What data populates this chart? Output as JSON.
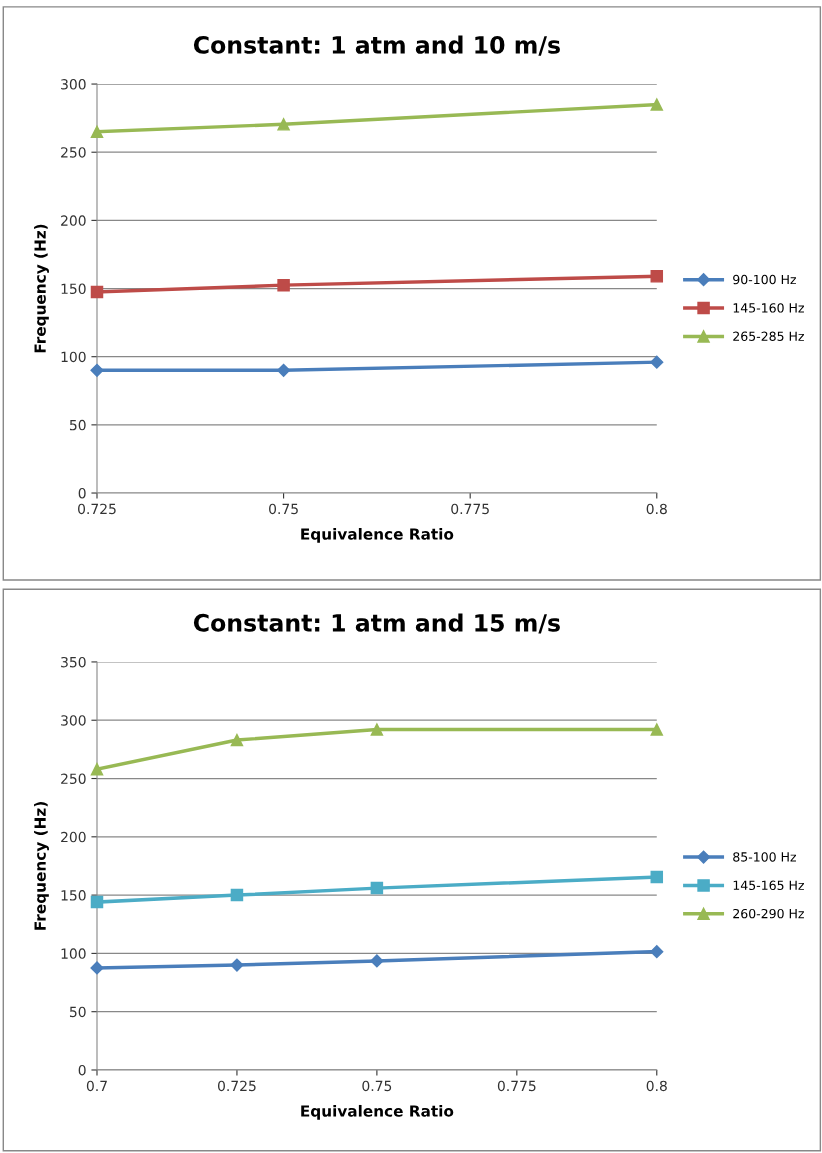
{
  "chart_data": [
    {
      "type": "line",
      "title": "Constant: 1 atm and 10 m/s",
      "xlabel": "Equivalence Ratio",
      "ylabel": "Frequency (Hz)",
      "x": [
        0.725,
        0.75,
        0.8
      ],
      "xlim": [
        0.725,
        0.8
      ],
      "xticks": [
        0.725,
        0.75,
        0.775,
        0.8
      ],
      "ylim": [
        0,
        300
      ],
      "yticks": [
        0,
        50,
        100,
        150,
        200,
        250,
        300
      ],
      "grid": "y",
      "legend": "right",
      "line_style": "solid",
      "series": [
        {
          "name": "90-100 Hz",
          "color": "#4a7ebb",
          "marker": "diamond",
          "values": [
            90,
            90,
            96
          ]
        },
        {
          "name": "145-160 Hz",
          "color": "#be4b48",
          "marker": "square",
          "values": [
            147.5,
            152.5,
            159
          ]
        },
        {
          "name": "265-285 Hz",
          "color": "#98b954",
          "marker": "triangle",
          "values": [
            265,
            270.5,
            285
          ]
        }
      ]
    },
    {
      "type": "line",
      "title": "Constant: 1 atm and 15 m/s",
      "xlabel": "Equivalence Ratio",
      "ylabel": "Frequency (Hz)",
      "x": [
        0.7,
        0.725,
        0.75,
        0.8
      ],
      "xlim": [
        0.7,
        0.8
      ],
      "xticks": [
        0.7,
        0.725,
        0.75,
        0.775,
        0.8
      ],
      "ylim": [
        0,
        350
      ],
      "yticks": [
        0,
        50,
        100,
        150,
        200,
        250,
        300,
        350
      ],
      "grid": "y",
      "legend": "right",
      "line_style": "solid",
      "series": [
        {
          "name": "85-100 Hz",
          "color": "#4a7ebb",
          "marker": "diamond",
          "values": [
            87.5,
            90,
            93.5,
            101.5
          ]
        },
        {
          "name": "145-165 Hz",
          "color": "#4bacc6",
          "marker": "square",
          "values": [
            144,
            150,
            156,
            165.5
          ]
        },
        {
          "name": "260-290 Hz",
          "color": "#98b954",
          "marker": "triangle",
          "values": [
            258,
            283,
            292,
            292
          ]
        }
      ]
    }
  ]
}
